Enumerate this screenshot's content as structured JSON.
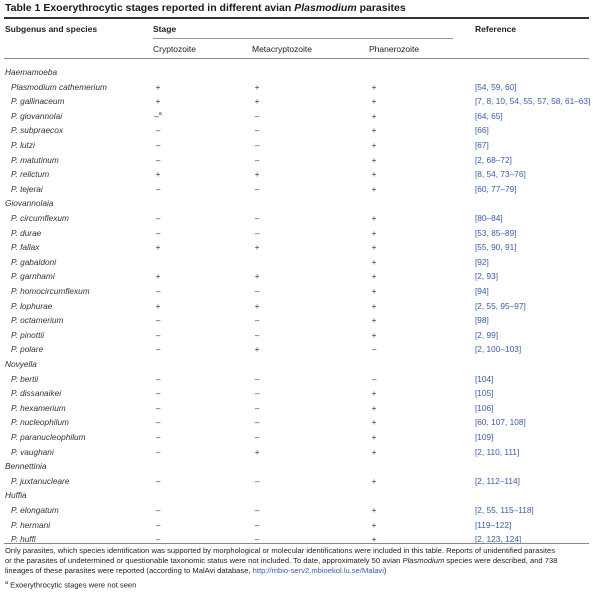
{
  "title": {
    "prefix": "Table 1  Exoerythrocytic stages reported in different avian ",
    "italic": "Plasmodium",
    "suffix": " parasites"
  },
  "headers": {
    "subgenus": "Subgenus and species",
    "stage": "Stage",
    "reference": "Reference",
    "crypto": "Cryptozoite",
    "metacrypto": "Metacryptozoite",
    "phanero": "Phanerozoite"
  },
  "rows": [
    {
      "group": "Haemamoeba"
    },
    {
      "name": "Plasmodium cathemerium",
      "c1": "+",
      "c2": "+",
      "c3": "+",
      "ref": "[54, 59, 60]"
    },
    {
      "name": "P. gallinaceum",
      "c1": "+",
      "c2": "+",
      "c3": "+",
      "ref": "[7, 8, 10, 54, 55, 57, 58, 61–63]"
    },
    {
      "name": "P. giovannolai",
      "c1": "–",
      "c1sup": "a",
      "c2": "–",
      "c3": "+",
      "ref": "[64, 65]"
    },
    {
      "name": "P. subpraecox",
      "c1": "–",
      "c2": "–",
      "c3": "+",
      "ref": "[66]"
    },
    {
      "name": "P. lutzi",
      "c1": "–",
      "c2": "–",
      "c3": "+",
      "ref": "[67]"
    },
    {
      "name": "P. matutinum",
      "c1": "–",
      "c2": "–",
      "c3": "+",
      "ref": "[2, 68–72]"
    },
    {
      "name": "P. relictum",
      "c1": "+",
      "c2": "+",
      "c3": "+",
      "ref": "[8, 54, 73–76]"
    },
    {
      "name": "P. tejerai",
      "c1": "–",
      "c2": "–",
      "c3": "+",
      "ref": "[60, 77–79]"
    },
    {
      "group": "Giovannolaia"
    },
    {
      "name": "P. circumflexum",
      "c1": "–",
      "c2": "–",
      "c3": "+",
      "ref": "[80–84]"
    },
    {
      "name": "P. durae",
      "c1": "–",
      "c2": "–",
      "c3": "+",
      "ref": "[53, 85–89]"
    },
    {
      "name": "P. fallax",
      "c1": "+",
      "c2": "+",
      "c3": "+",
      "ref": "[55, 90, 91]"
    },
    {
      "name": "P. gabaldoni",
      "c1": "",
      "c2": "",
      "c3": "+",
      "ref": "[92]"
    },
    {
      "name": "P. garnhami",
      "c1": "+",
      "c2": "+",
      "c3": "+",
      "ref": "[2, 93]"
    },
    {
      "name": "P. homocircumflexum",
      "c1": "–",
      "c2": "–",
      "c3": "+",
      "ref": "[94]"
    },
    {
      "name": "P. lophurae",
      "c1": "+",
      "c2": "+",
      "c3": "+",
      "ref": "[2, 55, 95–97]"
    },
    {
      "name": "P. octamerium",
      "c1": "–",
      "c2": "–",
      "c3": "+",
      "ref": "[98]"
    },
    {
      "name": "P. pinottii",
      "c1": "–",
      "c2": "–",
      "c3": "+",
      "ref": "[2, 99]"
    },
    {
      "name": "P. polare",
      "c1": "–",
      "c2": "+",
      "c3": "–",
      "ref": "[2, 100–103]"
    },
    {
      "group": "Novyella"
    },
    {
      "name": "P. bertii",
      "c1": "–",
      "c2": "–",
      "c3": "–",
      "ref": "[104]"
    },
    {
      "name": "P. dissanaikei",
      "c1": "–",
      "c2": "–",
      "c3": "+",
      "ref": "[105]"
    },
    {
      "name": "P. hexamerium",
      "c1": "–",
      "c2": "–",
      "c3": "+",
      "ref": "[106]"
    },
    {
      "name": "P. nucleophilum",
      "c1": "–",
      "c2": "–",
      "c3": "+",
      "ref": "[60, 107, 108]"
    },
    {
      "name": "P. paranucleophilum",
      "c1": "–",
      "c2": "–",
      "c3": "+",
      "ref": "[109]"
    },
    {
      "name": "P. vaughani",
      "c1": "–",
      "c2": "+",
      "c3": "+",
      "ref": "[2, 110, 111]"
    },
    {
      "group": "Bennettinia"
    },
    {
      "name": "P. juxtanucleare",
      "c1": "–",
      "c2": "–",
      "c3": "+",
      "ref": "[2, 112–114]"
    },
    {
      "group": "Huffia"
    },
    {
      "name": "P. elongatum",
      "c1": "–",
      "c2": "–",
      "c3": "+",
      "ref": "[2, 55, 115–118]"
    },
    {
      "name": "P. hermani",
      "c1": "–",
      "c2": "–",
      "c3": "+",
      "ref": "[119–122]"
    },
    {
      "name": "P. huffi",
      "c1": "–",
      "c2": "–",
      "c3": "+",
      "ref": "[2, 123, 124]"
    }
  ],
  "footnote": {
    "line1": "Only parasites, which species identification was supported by morphological or molecular identifications were included in this table. Reports of unidentified parasites",
    "line2": "or the parasites of undetermined or questionable taxonomic status were not included. To date, approximately 50 avian ",
    "line2_italic": "Plasmodium",
    "line2_end": " species were described, and 738",
    "line3": "lineages of these parasites were reported (according to MalAvi database, ",
    "link": "http://mbio-serv2.mbioekol.lu.se/Malavi",
    "line3_end": ")",
    "note_sup": "a",
    "note": " Exoerythrocytic stages were not seen"
  }
}
